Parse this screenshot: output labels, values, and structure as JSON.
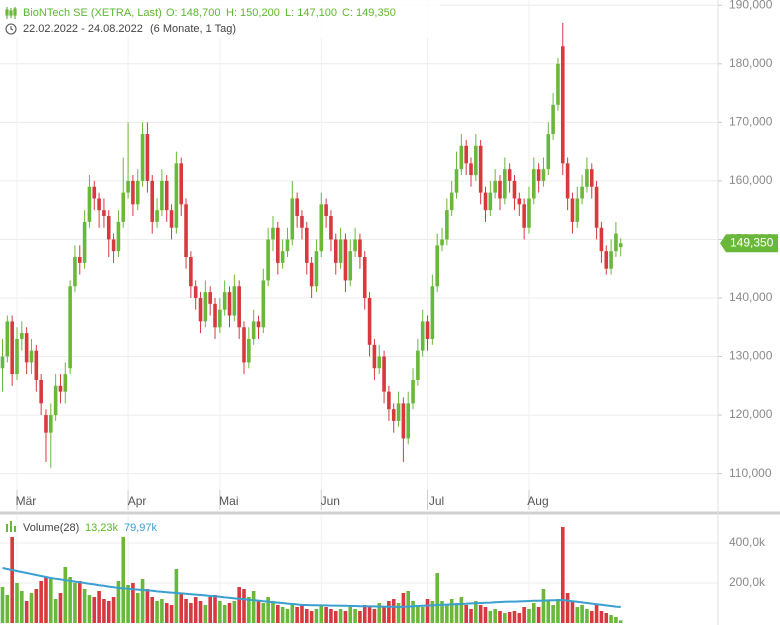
{
  "chart_data": {
    "type": "candlestick",
    "title": "BioNTech SE (XETRA, Last)",
    "ohlc_labels": [
      "O: 148,700",
      "H: 150,200",
      "L: 147,100",
      "C: 149,350"
    ],
    "date_range": "22.02.2022 - 24.08.2022",
    "period": "(6 Monate, 1 Tag)",
    "categories": [
      null,
      null,
      null,
      "Mär",
      null,
      null,
      null,
      null,
      null,
      null,
      null,
      null,
      null,
      null,
      null,
      null,
      null,
      null,
      null,
      null,
      null,
      null,
      null,
      null,
      null,
      null,
      "Apr",
      null,
      null,
      null,
      null,
      null,
      null,
      null,
      null,
      null,
      null,
      null,
      null,
      null,
      null,
      null,
      null,
      null,
      null,
      "Mai",
      null,
      null,
      null,
      null,
      null,
      null,
      null,
      null,
      null,
      null,
      null,
      null,
      null,
      null,
      null,
      null,
      null,
      null,
      null,
      null,
      "Jun",
      null,
      null,
      null,
      null,
      null,
      null,
      null,
      null,
      null,
      null,
      null,
      null,
      null,
      null,
      null,
      null,
      null,
      null,
      null,
      null,
      null,
      "Jul",
      null,
      null,
      null,
      null,
      null,
      null,
      null,
      null,
      null,
      null,
      null,
      null,
      null,
      null,
      null,
      null,
      null,
      null,
      null,
      null,
      "Aug",
      null,
      null,
      null,
      null,
      null,
      null,
      null,
      null,
      null,
      null,
      null,
      null,
      null,
      null,
      null,
      null,
      null,
      null,
      null
    ],
    "ohlc": [
      [
        128,
        133,
        124,
        130
      ],
      [
        130,
        137,
        129,
        136
      ],
      [
        136,
        137,
        125,
        127
      ],
      [
        127,
        135,
        126,
        133
      ],
      [
        133,
        136,
        131,
        134
      ],
      [
        134,
        135,
        127,
        129
      ],
      [
        129,
        133,
        127,
        131
      ],
      [
        131,
        132,
        124,
        126
      ],
      [
        126,
        127,
        120,
        122
      ],
      [
        120,
        121,
        112,
        117
      ],
      [
        117,
        122,
        111,
        120
      ],
      [
        120,
        127,
        119,
        125
      ],
      [
        125,
        127,
        122,
        124
      ],
      [
        124,
        129,
        122,
        127
      ],
      [
        128,
        143,
        127,
        142
      ],
      [
        142,
        149,
        141,
        147
      ],
      [
        147,
        149,
        144,
        146
      ],
      [
        146,
        155,
        145,
        153
      ],
      [
        153,
        161,
        152,
        159
      ],
      [
        159,
        160,
        155,
        157
      ],
      [
        157,
        158,
        152,
        155
      ],
      [
        155,
        157,
        152,
        154
      ],
      [
        154,
        155,
        147,
        150
      ],
      [
        150,
        151,
        146,
        148
      ],
      [
        148,
        155,
        147,
        153
      ],
      [
        153,
        164,
        152,
        158
      ],
      [
        158,
        170,
        157,
        160
      ],
      [
        160,
        161,
        154,
        156
      ],
      [
        156,
        162,
        155,
        160
      ],
      [
        160,
        170,
        159,
        168
      ],
      [
        168,
        170,
        158,
        160
      ],
      [
        160,
        161,
        151,
        153
      ],
      [
        153,
        157,
        152,
        155
      ],
      [
        155,
        162,
        154,
        160
      ],
      [
        160,
        161,
        153,
        155
      ],
      [
        155,
        156,
        150,
        152
      ],
      [
        152,
        165,
        151,
        163
      ],
      [
        163,
        164,
        154,
        156
      ],
      [
        156,
        157,
        145,
        147
      ],
      [
        147,
        148,
        140,
        142
      ],
      [
        142,
        143,
        138,
        140
      ],
      [
        140,
        141,
        134,
        136
      ],
      [
        136,
        143,
        135,
        141
      ],
      [
        141,
        142,
        137,
        139
      ],
      [
        139,
        140,
        133,
        135
      ],
      [
        135,
        140,
        134,
        138
      ],
      [
        138,
        143,
        137,
        141
      ],
      [
        141,
        142,
        135,
        137
      ],
      [
        137,
        144,
        136,
        142
      ],
      [
        142,
        143,
        133,
        135
      ],
      [
        135,
        136,
        127,
        129
      ],
      [
        129,
        135,
        128,
        133
      ],
      [
        133,
        138,
        132,
        136
      ],
      [
        136,
        137,
        133,
        135
      ],
      [
        135,
        145,
        134,
        143
      ],
      [
        143,
        152,
        142,
        150
      ],
      [
        150,
        154,
        148,
        152
      ],
      [
        152,
        153,
        144,
        146
      ],
      [
        146,
        150,
        145,
        148
      ],
      [
        148,
        152,
        147,
        150
      ],
      [
        150,
        160,
        149,
        157
      ],
      [
        157,
        158,
        152,
        154
      ],
      [
        154,
        155,
        150,
        152
      ],
      [
        152,
        153,
        144,
        146
      ],
      [
        146,
        147,
        140,
        142
      ],
      [
        142,
        150,
        141,
        148
      ],
      [
        148,
        158,
        147,
        156
      ],
      [
        156,
        157,
        152,
        154
      ],
      [
        154,
        155,
        148,
        150
      ],
      [
        150,
        151,
        144,
        146
      ],
      [
        146,
        152,
        145,
        150
      ],
      [
        150,
        151,
        141,
        143
      ],
      [
        143,
        150,
        142,
        148
      ],
      [
        148,
        152,
        147,
        150
      ],
      [
        150,
        151,
        145,
        147
      ],
      [
        147,
        148,
        138,
        140
      ],
      [
        140,
        141,
        130,
        132
      ],
      [
        132,
        133,
        126,
        128
      ],
      [
        128,
        132,
        127,
        130
      ],
      [
        130,
        131,
        122,
        124
      ],
      [
        124,
        125,
        119,
        121
      ],
      [
        121,
        122,
        117,
        119
      ],
      [
        119,
        124,
        118,
        122
      ],
      [
        122,
        123,
        112,
        116
      ],
      [
        116,
        124,
        115,
        122
      ],
      [
        122,
        128,
        121,
        126
      ],
      [
        126,
        133,
        125,
        131
      ],
      [
        131,
        138,
        130,
        136
      ],
      [
        136,
        137,
        131,
        133
      ],
      [
        133,
        144,
        132,
        142
      ],
      [
        142,
        151,
        141,
        149
      ],
      [
        149,
        152,
        148,
        150
      ],
      [
        150,
        157,
        149,
        155
      ],
      [
        155,
        160,
        154,
        158
      ],
      [
        158,
        165,
        157,
        162
      ],
      [
        162,
        168,
        161,
        166
      ],
      [
        166,
        167,
        161,
        163
      ],
      [
        163,
        164,
        159,
        161
      ],
      [
        161,
        168,
        160,
        166
      ],
      [
        166,
        167,
        156,
        158
      ],
      [
        158,
        159,
        153,
        155
      ],
      [
        155,
        160,
        154,
        158
      ],
      [
        158,
        162,
        157,
        160
      ],
      [
        160,
        161,
        155,
        157
      ],
      [
        157,
        164,
        156,
        162
      ],
      [
        162,
        163,
        158,
        160
      ],
      [
        160,
        161,
        155,
        157
      ],
      [
        157,
        158,
        154,
        156
      ],
      [
        156,
        157,
        150,
        152
      ],
      [
        152,
        159,
        151,
        157
      ],
      [
        157,
        164,
        156,
        162
      ],
      [
        162,
        163,
        158,
        160
      ],
      [
        160,
        164,
        159,
        162
      ],
      [
        162,
        170,
        161,
        168
      ],
      [
        168,
        175,
        167,
        173
      ],
      [
        173,
        181,
        172,
        180
      ],
      [
        183,
        187,
        161,
        163
      ],
      [
        163,
        164,
        155,
        157
      ],
      [
        157,
        158,
        151,
        153
      ],
      [
        153,
        159,
        152,
        157
      ],
      [
        157,
        161,
        156,
        159
      ],
      [
        159,
        164,
        158,
        162
      ],
      [
        162,
        163,
        157,
        159
      ],
      [
        159,
        160,
        150,
        152
      ],
      [
        152,
        153,
        146,
        148
      ],
      [
        148,
        149,
        144,
        145
      ],
      [
        145,
        150,
        144,
        148
      ],
      [
        148,
        153,
        147,
        151
      ],
      [
        148.7,
        150.2,
        147.1,
        149.35
      ]
    ],
    "up_color": "#6ab83a",
    "down_color": "#d7393f",
    "ylim": [
      107.2,
      190.9
    ],
    "yticks": [
      {
        "value": 190,
        "label": "190,000"
      },
      {
        "value": 180,
        "label": "180,000"
      },
      {
        "value": 170,
        "label": "170,000"
      },
      {
        "value": 160,
        "label": "160,000"
      },
      {
        "value": 150,
        "label": "150,000"
      },
      {
        "value": 140,
        "label": "140,000"
      },
      {
        "value": 130,
        "label": "130,000"
      },
      {
        "value": 120,
        "label": "120,000"
      },
      {
        "value": 110,
        "label": "110,000"
      }
    ],
    "last_value_label": "149,350",
    "grid": true,
    "volume": {
      "title": "Volume(28)",
      "value_label": "13,23k",
      "ma_label": "79,97k",
      "ma_color": "#3a9fd1",
      "values": [
        180000,
        140000,
        430000,
        200000,
        160000,
        110000,
        150000,
        170000,
        210000,
        230000,
        220000,
        120000,
        150000,
        280000,
        230000,
        200000,
        210000,
        170000,
        140000,
        130000,
        160000,
        120000,
        110000,
        130000,
        210000,
        430000,
        190000,
        200000,
        150000,
        220000,
        170000,
        130000,
        110000,
        120000,
        100000,
        90000,
        270000,
        150000,
        120000,
        100000,
        130000,
        110000,
        90000,
        130000,
        140000,
        110000,
        90000,
        100000,
        110000,
        180000,
        170000,
        130000,
        160000,
        110000,
        100000,
        130000,
        110000,
        90000,
        80000,
        70000,
        90000,
        80000,
        90000,
        70000,
        60000,
        70000,
        90000,
        80000,
        70000,
        60000,
        70000,
        60000,
        80000,
        70000,
        60000,
        90000,
        80000,
        70000,
        100000,
        80000,
        110000,
        120000,
        100000,
        150000,
        160000,
        110000,
        90000,
        80000,
        120000,
        110000,
        250000,
        110000,
        90000,
        120000,
        100000,
        130000,
        90000,
        70000,
        110000,
        90000,
        80000,
        60000,
        70000,
        60000,
        50000,
        55000,
        60000,
        50000,
        80000,
        70000,
        100000,
        80000,
        170000,
        110000,
        90000,
        120000,
        480000,
        150000,
        110000,
        80000,
        90000,
        70000,
        60000,
        90000,
        60000,
        50000,
        40000,
        30000,
        13230
      ],
      "ma": [
        275000,
        270000,
        265000,
        260000,
        255000,
        250000,
        245000,
        240000,
        235000,
        230000,
        225000,
        221000,
        218000,
        214000,
        211000,
        207000,
        204000,
        200000,
        196000,
        193000,
        189000,
        186000,
        182000,
        179000,
        175000,
        173000,
        171000,
        169000,
        167000,
        165000,
        163000,
        161000,
        158000,
        156000,
        154000,
        152000,
        150000,
        148000,
        146000,
        144000,
        142000,
        140000,
        138000,
        135000,
        133000,
        131000,
        128000,
        126000,
        123000,
        121000,
        119000,
        116000,
        114000,
        112000,
        109000,
        107000,
        104000,
        102000,
        100000,
        97000,
        95000,
        93000,
        90000,
        90000,
        89000,
        89000,
        88000,
        88000,
        87000,
        87000,
        86000,
        86000,
        85000,
        85000,
        84000,
        84000,
        83000,
        83000,
        82000,
        82000,
        81000,
        81000,
        80000,
        81000,
        82000,
        84000,
        85000,
        86000,
        87000,
        88000,
        90000,
        91000,
        92000,
        93000,
        94000,
        95000,
        96000,
        98000,
        99000,
        100000,
        101000,
        102000,
        104000,
        105000,
        106000,
        107000,
        107000,
        108000,
        109000,
        110000,
        111000,
        111000,
        112000,
        113000,
        114000,
        114000,
        115000,
        112000,
        109000,
        106000,
        103000,
        100000,
        97000,
        94000,
        91000,
        88000,
        85000,
        82000,
        79970
      ],
      "ylim": [
        0,
        540000
      ],
      "yticks": [
        {
          "value": 400000,
          "label": "400,0k"
        },
        {
          "value": 200000,
          "label": "200,0k"
        }
      ]
    }
  }
}
